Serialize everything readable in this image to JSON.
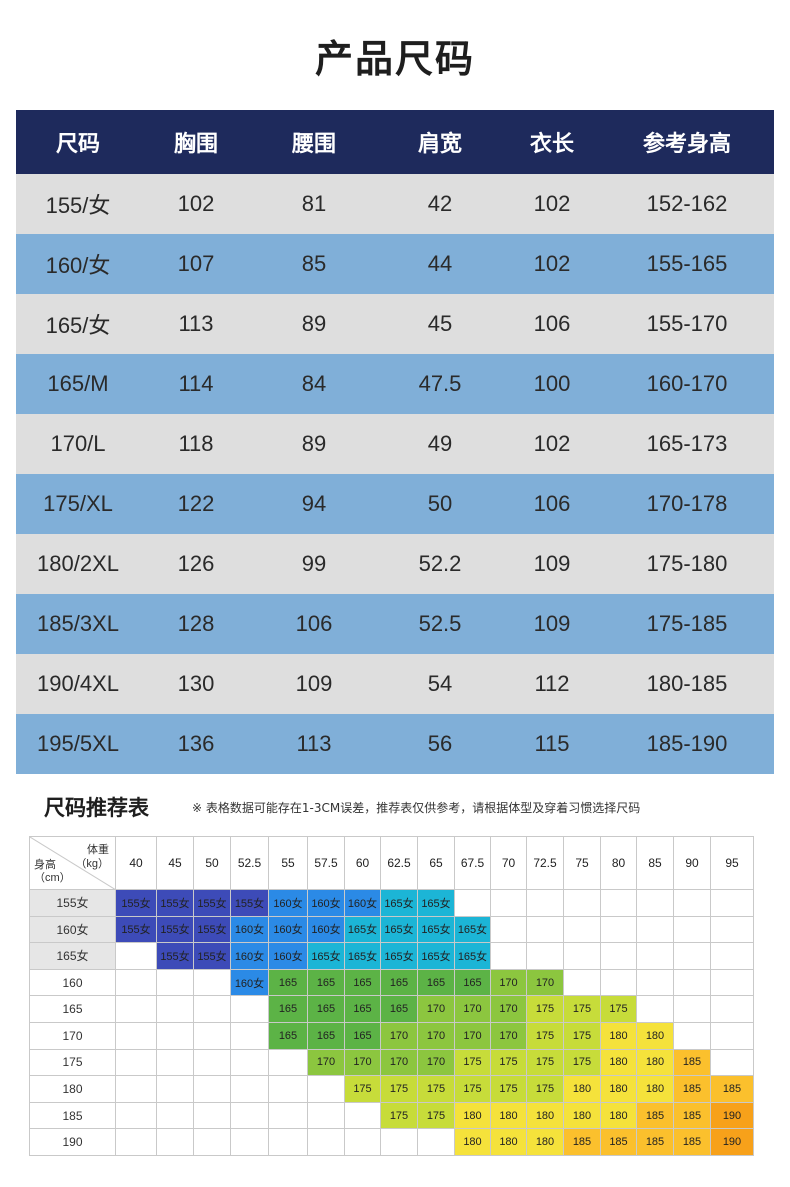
{
  "page_title": "产品尺码",
  "size_table": {
    "headers": [
      "尺码",
      "胸围",
      "腰围",
      "肩宽",
      "衣长",
      "参考身高"
    ],
    "rows": [
      [
        "155/女",
        "102",
        "81",
        "42",
        "102",
        "152-162"
      ],
      [
        "160/女",
        "107",
        "85",
        "44",
        "102",
        "155-165"
      ],
      [
        "165/女",
        "113",
        "89",
        "45",
        "106",
        "155-170"
      ],
      [
        "165/M",
        "114",
        "84",
        "47.5",
        "100",
        "160-170"
      ],
      [
        "170/L",
        "118",
        "89",
        "49",
        "102",
        "165-173"
      ],
      [
        "175/XL",
        "122",
        "94",
        "50",
        "106",
        "170-178"
      ],
      [
        "180/2XL",
        "126",
        "99",
        "52.2",
        "109",
        "175-180"
      ],
      [
        "185/3XL",
        "128",
        "106",
        "52.5",
        "109",
        "175-185"
      ],
      [
        "190/4XL",
        "130",
        "109",
        "54",
        "112",
        "180-185"
      ],
      [
        "195/5XL",
        "136",
        "113",
        "56",
        "115",
        "185-190"
      ]
    ]
  },
  "recommend": {
    "title": "尺码推荐表",
    "note": "※ 表格数据可能存在1-3CM误差，推荐表仅供参考，请根据体型及穿着习惯选择尺码",
    "corner_weight_label": "体重",
    "corner_weight_unit": "（kg）",
    "corner_height_label": "身高",
    "corner_height_unit": "（cm）",
    "weights": [
      "40",
      "45",
      "50",
      "52.5",
      "55",
      "57.5",
      "60",
      "62.5",
      "65",
      "67.5",
      "70",
      "72.5",
      "75",
      "80",
      "85",
      "90",
      "95"
    ],
    "heights": [
      "155女",
      "160女",
      "165女",
      "160",
      "165",
      "170",
      "175",
      "180",
      "185",
      "190"
    ],
    "shaded_rows": [
      0,
      1,
      2
    ],
    "grid": [
      [
        "155女",
        "155女",
        "155女",
        "155女",
        "160女",
        "160女",
        "160女",
        "165女",
        "165女",
        "",
        "",
        "",
        "",
        "",
        "",
        "",
        ""
      ],
      [
        "155女",
        "155女",
        "155女",
        "160女",
        "160女",
        "160女",
        "165女",
        "165女",
        "165女",
        "165女",
        "",
        "",
        "",
        "",
        "",
        "",
        ""
      ],
      [
        "",
        "155女",
        "155女",
        "160女",
        "160女",
        "165女",
        "165女",
        "165女",
        "165女",
        "165女",
        "",
        "",
        "",
        "",
        "",
        "",
        ""
      ],
      [
        "",
        "",
        "",
        "160女",
        "165",
        "165",
        "165",
        "165",
        "165",
        "165",
        "170",
        "170",
        "",
        "",
        "",
        "",
        ""
      ],
      [
        "",
        "",
        "",
        "",
        "165",
        "165",
        "165",
        "165",
        "170",
        "170",
        "170",
        "175",
        "175",
        "175",
        "",
        "",
        ""
      ],
      [
        "",
        "",
        "",
        "",
        "165",
        "165",
        "165",
        "170",
        "170",
        "170",
        "170",
        "175",
        "175",
        "180",
        "180",
        "",
        ""
      ],
      [
        "",
        "",
        "",
        "",
        "",
        "170",
        "170",
        "170",
        "170",
        "175",
        "175",
        "175",
        "175",
        "180",
        "180",
        "185",
        ""
      ],
      [
        "",
        "",
        "",
        "",
        "",
        "",
        "175",
        "175",
        "175",
        "175",
        "175",
        "175",
        "180",
        "180",
        "180",
        "185",
        "185"
      ],
      [
        "",
        "",
        "",
        "",
        "",
        "",
        "",
        "175",
        "175",
        "180",
        "180",
        "180",
        "180",
        "180",
        "185",
        "185",
        "190"
      ],
      [
        "",
        "",
        "",
        "",
        "",
        "",
        "",
        "",
        "",
        "180",
        "180",
        "180",
        "185",
        "185",
        "185",
        "185",
        "190"
      ]
    ],
    "size_colors": {
      "155女": "#3d4bb8",
      "160女": "#2b8ae6",
      "165女": "#1cb5d6",
      "165": "#5cb346",
      "170": "#8cc63f",
      "175": "#c7dc3a",
      "180": "#f5e23b",
      "185": "#fbc02d",
      "190": "#f7a11a"
    }
  }
}
